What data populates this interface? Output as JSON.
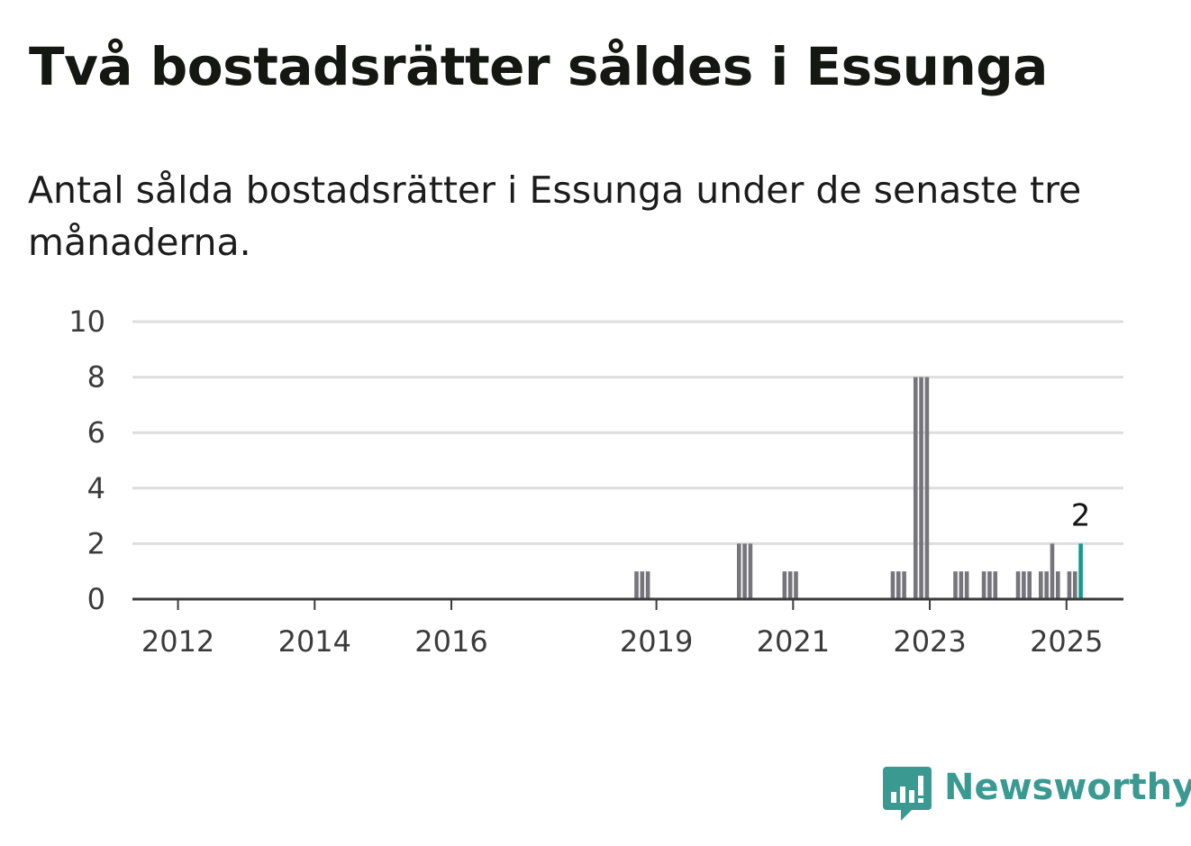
{
  "headline": "Två bostadsrätter såldes i Essunga",
  "subheading": "Antal sålda bostadsrätter i Essunga under de senaste tre månaderna.",
  "brand": {
    "name": "Newsworthy",
    "icon": "newsworthy-logo-icon",
    "color": "#3a9a92"
  },
  "colors": {
    "bar": "#76757b",
    "highlight": "#139a8e",
    "grid": "#dedede",
    "axis": "#3b3b3b"
  },
  "chart_data": {
    "type": "bar",
    "title": "",
    "xlabel": "",
    "ylabel": "",
    "ylim": [
      0,
      10
    ],
    "yticks": [
      0,
      2,
      4,
      6,
      8,
      10
    ],
    "xlim": [
      "2011-05",
      "2025-11"
    ],
    "xticks": [
      {
        "date": "2012-01",
        "label": "2012"
      },
      {
        "date": "2014-01",
        "label": "2014"
      },
      {
        "date": "2016-01",
        "label": "2016"
      },
      {
        "date": "2019-01",
        "label": "2019"
      },
      {
        "date": "2021-01",
        "label": "2021"
      },
      {
        "date": "2023-01",
        "label": "2023"
      },
      {
        "date": "2025-01",
        "label": "2025"
      }
    ],
    "grid": true,
    "bars": [
      {
        "date": "2018-09",
        "value": 1
      },
      {
        "date": "2018-10",
        "value": 1
      },
      {
        "date": "2018-11",
        "value": 1
      },
      {
        "date": "2020-03",
        "value": 2
      },
      {
        "date": "2020-04",
        "value": 2
      },
      {
        "date": "2020-05",
        "value": 2
      },
      {
        "date": "2020-11",
        "value": 1
      },
      {
        "date": "2020-12",
        "value": 1
      },
      {
        "date": "2021-01",
        "value": 1
      },
      {
        "date": "2022-06",
        "value": 1
      },
      {
        "date": "2022-07",
        "value": 1
      },
      {
        "date": "2022-08",
        "value": 1
      },
      {
        "date": "2022-10",
        "value": 8
      },
      {
        "date": "2022-11",
        "value": 8
      },
      {
        "date": "2022-12",
        "value": 8
      },
      {
        "date": "2023-05",
        "value": 1
      },
      {
        "date": "2023-06",
        "value": 1
      },
      {
        "date": "2023-07",
        "value": 1
      },
      {
        "date": "2023-10",
        "value": 1
      },
      {
        "date": "2023-11",
        "value": 1
      },
      {
        "date": "2023-12",
        "value": 1
      },
      {
        "date": "2024-04",
        "value": 1
      },
      {
        "date": "2024-05",
        "value": 1
      },
      {
        "date": "2024-06",
        "value": 1
      },
      {
        "date": "2024-08",
        "value": 1
      },
      {
        "date": "2024-09",
        "value": 1
      },
      {
        "date": "2024-10",
        "value": 2
      },
      {
        "date": "2024-11",
        "value": 1
      },
      {
        "date": "2025-01",
        "value": 1
      },
      {
        "date": "2025-02",
        "value": 1
      },
      {
        "date": "2025-03",
        "value": 2,
        "highlight": true,
        "label": "2"
      }
    ]
  }
}
